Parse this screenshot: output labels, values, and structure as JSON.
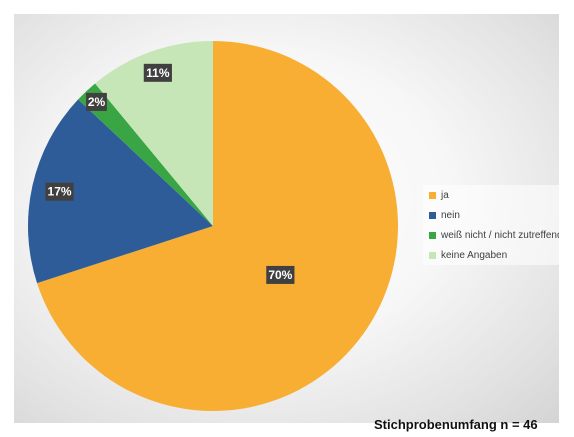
{
  "chart_data": {
    "type": "pie",
    "title": "",
    "slices": [
      {
        "name": "ja",
        "value": 70,
        "label": "70%",
        "color": "#f7ae33"
      },
      {
        "name": "nein",
        "value": 17,
        "label": "17%",
        "color": "#2e5c99"
      },
      {
        "name": "weiß nicht / nicht zutreffend",
        "value": 2,
        "label": "2%",
        "color": "#3aa544"
      },
      {
        "name": "keine Angaben",
        "value": 11,
        "label": "11%",
        "color": "#c6e6b8"
      }
    ],
    "legend_position": "right",
    "start": "top, clockwise"
  },
  "legend": {
    "items": [
      "ja",
      "nein",
      "weiß nicht / nicht zutreffend",
      "keine Angaben"
    ]
  },
  "footer": {
    "sample_size": "Stichprobenumfang n = 46"
  }
}
